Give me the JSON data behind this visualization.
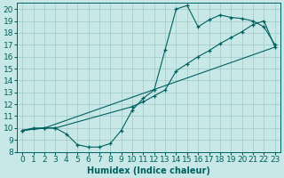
{
  "xlabel": "Humidex (Indice chaleur)",
  "xlim": [
    -0.5,
    23.5
  ],
  "ylim": [
    8,
    20.5
  ],
  "xticks": [
    0,
    1,
    2,
    3,
    4,
    5,
    6,
    7,
    8,
    9,
    10,
    11,
    12,
    13,
    14,
    15,
    16,
    17,
    18,
    19,
    20,
    21,
    22,
    23
  ],
  "yticks": [
    8,
    9,
    10,
    11,
    12,
    13,
    14,
    15,
    16,
    17,
    18,
    19,
    20
  ],
  "bg_color": "#c8e8e8",
  "line_color": "#006060",
  "grid_color": "#a0c8c8",
  "curve1_x": [
    0,
    1,
    2,
    3,
    4,
    5,
    6,
    7,
    8,
    9,
    10,
    11,
    12,
    13,
    14,
    15,
    16,
    17,
    18,
    19,
    20,
    21,
    22,
    23
  ],
  "curve1_y": [
    9.8,
    10.0,
    10.0,
    10.0,
    9.5,
    8.6,
    8.4,
    8.4,
    8.7,
    9.8,
    11.5,
    12.5,
    13.2,
    16.6,
    20.0,
    20.3,
    18.5,
    19.1,
    19.5,
    19.3,
    19.2,
    19.0,
    18.5,
    17.0
  ],
  "curve2_x": [
    0,
    2,
    3,
    10,
    11,
    12,
    13,
    14,
    15,
    16,
    17,
    18,
    19,
    20,
    21,
    22,
    23
  ],
  "curve2_y": [
    9.8,
    10.0,
    10.0,
    11.8,
    12.2,
    12.7,
    13.2,
    14.8,
    15.4,
    16.0,
    16.5,
    17.1,
    17.6,
    18.1,
    18.7,
    19.0,
    16.8
  ],
  "curve3_x": [
    0,
    2,
    23
  ],
  "curve3_y": [
    9.8,
    10.0,
    16.8
  ],
  "font_size": 6.5
}
